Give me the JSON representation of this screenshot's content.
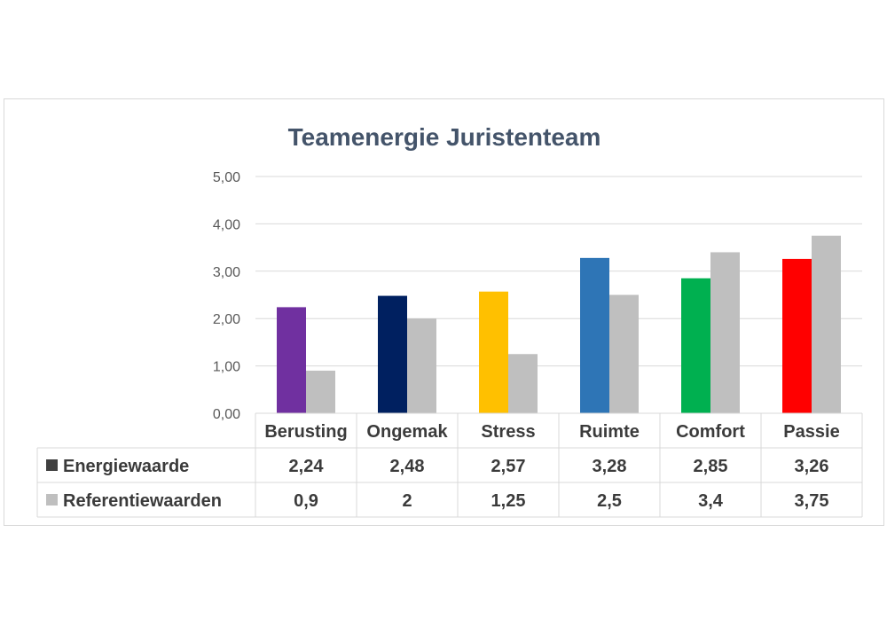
{
  "chart_data": {
    "type": "bar",
    "title": "Teamenergie Juristenteam",
    "categories": [
      "Berusting",
      "Ongemak",
      "Stress",
      "Ruimte",
      "Comfort",
      "Passie"
    ],
    "ylim": [
      0,
      5
    ],
    "yticks": [
      "0,00",
      "1,00",
      "2,00",
      "3,00",
      "4,00",
      "5,00"
    ],
    "grid": true,
    "legend_placement": "data-table",
    "series": [
      {
        "name": "Energiewaarde",
        "values": [
          2.24,
          2.48,
          2.57,
          3.28,
          2.85,
          3.26
        ],
        "labels": [
          "2,24",
          "2,48",
          "2,57",
          "3,28",
          "2,85",
          "3,26"
        ],
        "colors": [
          "#7030a0",
          "#002060",
          "#ffc000",
          "#2e75b6",
          "#00b050",
          "#ff0000"
        ],
        "legend_color": "#404040"
      },
      {
        "name": "Referentiewaarden",
        "values": [
          0.9,
          2,
          1.25,
          2.5,
          3.4,
          3.75
        ],
        "labels": [
          "0,9",
          "2",
          "1,25",
          "2,5",
          "3,4",
          "3,75"
        ],
        "color": "#bfbfbf",
        "legend_color": "#bfbfbf"
      }
    ]
  }
}
